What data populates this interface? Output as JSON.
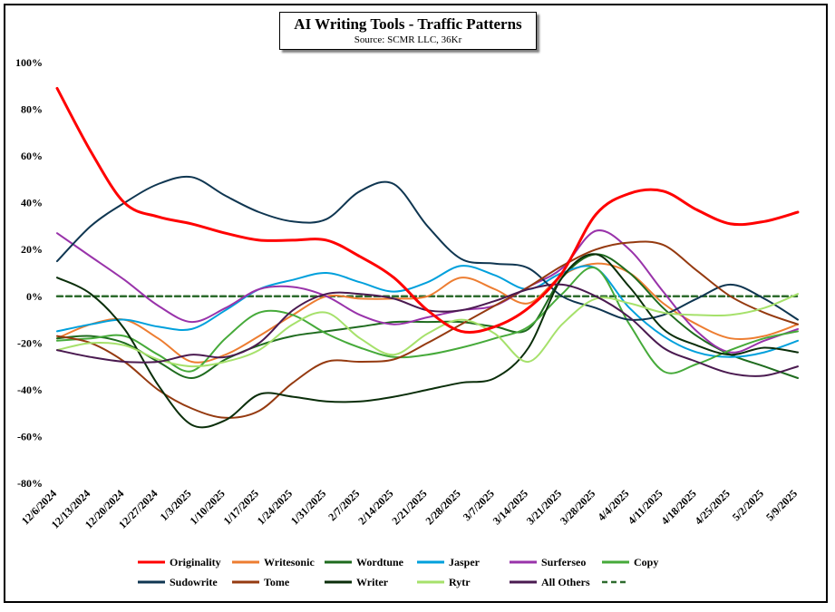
{
  "chart_data": {
    "type": "line",
    "title": "AI Writing Tools - Traffic Patterns",
    "subtitle": "Source: SCMR LLC, 36Kr",
    "ylim": [
      -80,
      100
    ],
    "yticks": [
      -80,
      -60,
      -40,
      -20,
      0,
      20,
      40,
      60,
      80,
      100
    ],
    "y_tick_suffix": "%",
    "grid": false,
    "legend_position": "bottom",
    "categories": [
      "12/6/2024",
      "12/13/2024",
      "12/20/2024",
      "12/27/2024",
      "1/3/2025",
      "1/10/2025",
      "1/17/2025",
      "1/24/2025",
      "1/31/2025",
      "2/7/2025",
      "2/14/2025",
      "2/21/2025",
      "2/28/2025",
      "3/7/2025",
      "3/14/2025",
      "3/21/2025",
      "3/28/2025",
      "4/4/2025",
      "4/11/2025",
      "4/18/2025",
      "4/25/2025",
      "5/2/2025",
      "5/9/2025"
    ],
    "series": [
      {
        "name": "Originality",
        "color": "#ff0000",
        "width": 3,
        "values": [
          89,
          62,
          40,
          34,
          31,
          27,
          24,
          24,
          24,
          17,
          8,
          -6,
          -15,
          -13,
          -5,
          10,
          35,
          44,
          45,
          37,
          31,
          32,
          36
        ]
      },
      {
        "name": "Writesonic",
        "color": "#ed7d31",
        "width": 2,
        "values": [
          -18,
          -12,
          -10,
          -18,
          -28,
          -25,
          -17,
          -8,
          0,
          -1,
          -1,
          0,
          8,
          3,
          -3,
          9,
          14,
          10,
          -3,
          -12,
          -18,
          -17,
          -12
        ]
      },
      {
        "name": "Wordtune",
        "color": "#1e6b1e",
        "width": 2,
        "values": [
          -18,
          -17,
          -20,
          -28,
          -35,
          -27,
          -21,
          -17,
          -15,
          -13,
          -11,
          -11,
          -11,
          -13,
          -14,
          8,
          18,
          10,
          -5,
          -17,
          -25,
          -30,
          -35
        ]
      },
      {
        "name": "Jasper",
        "color": "#00a0dc",
        "width": 2,
        "values": [
          -15,
          -12,
          -10,
          -13,
          -14,
          -6,
          3,
          7,
          10,
          6,
          2,
          6,
          13,
          9,
          3,
          10,
          12,
          -5,
          -17,
          -24,
          -26,
          -24,
          -19
        ]
      },
      {
        "name": "Surferseo",
        "color": "#9933aa",
        "width": 2,
        "values": [
          27,
          17,
          7,
          -4,
          -11,
          -5,
          3,
          4,
          0,
          -8,
          -12,
          -9,
          -6,
          -4,
          4,
          12,
          28,
          20,
          2,
          -15,
          -24,
          -19,
          -14
        ]
      },
      {
        "name": "Copy",
        "color": "#46aa3a",
        "width": 2,
        "values": [
          -19,
          -18,
          -17,
          -25,
          -32,
          -18,
          -7,
          -8,
          -16,
          -22,
          -26,
          -25,
          -22,
          -18,
          -13,
          1,
          12,
          -12,
          -32,
          -29,
          -23,
          -18,
          -15
        ]
      },
      {
        "name": "Sudowrite",
        "color": "#0f3651",
        "width": 2,
        "values": [
          15,
          30,
          40,
          48,
          51,
          43,
          36,
          32,
          33,
          45,
          48,
          30,
          16,
          14,
          12,
          0,
          -5,
          -10,
          -8,
          -1,
          5,
          -1,
          -10
        ]
      },
      {
        "name": "Tome",
        "color": "#953a10",
        "width": 2,
        "values": [
          -17,
          -20,
          -28,
          -40,
          -48,
          -52,
          -49,
          -37,
          -28,
          -28,
          -27,
          -20,
          -12,
          -4,
          4,
          13,
          20,
          23,
          22,
          11,
          0,
          -7,
          -12
        ]
      },
      {
        "name": "Writer",
        "color": "#0a2e0a",
        "width": 2,
        "values": [
          8,
          1,
          -14,
          -38,
          -55,
          -53,
          -42,
          -43,
          -45,
          -45,
          -43,
          -40,
          -37,
          -35,
          -22,
          8,
          18,
          4,
          -14,
          -21,
          -25,
          -22,
          -24
        ]
      },
      {
        "name": "Rytr",
        "color": "#a6e16b",
        "width": 2,
        "values": [
          -23,
          -20,
          -21,
          -27,
          -30,
          -28,
          -23,
          -12,
          -7,
          -18,
          -25,
          -16,
          -10,
          -16,
          -28,
          -12,
          -1,
          -3,
          -7,
          -8,
          -8,
          -5,
          1
        ]
      },
      {
        "name": "All Others",
        "color": "#4a1a50",
        "width": 2,
        "values": [
          -23,
          -26,
          -28,
          -28,
          -25,
          -26,
          -20,
          -6,
          1,
          1,
          -1,
          -6,
          -6,
          -2,
          3,
          5,
          0,
          -9,
          -22,
          -28,
          -33,
          -34,
          -30
        ]
      },
      {
        "name": "",
        "color": "#2d6b2d",
        "width": 2.5,
        "dashed": true,
        "values": [
          0,
          0,
          0,
          0,
          0,
          0,
          0,
          0,
          0,
          0,
          0,
          0,
          0,
          0,
          0,
          0,
          0,
          0,
          0,
          0,
          0,
          0,
          0
        ]
      }
    ]
  }
}
